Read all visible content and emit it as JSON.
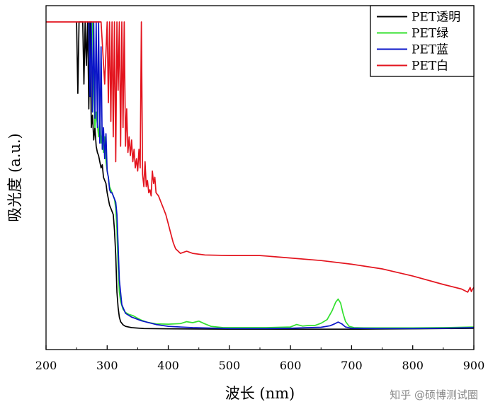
{
  "chart_data": {
    "type": "line",
    "title": "",
    "xlabel": "波长 (nm)",
    "ylabel": "吸光度 (a.u.)",
    "xlim": [
      200,
      900
    ],
    "ylim": [
      0,
      1
    ],
    "x_ticks": [
      "200",
      "300",
      "400",
      "500",
      "600",
      "700",
      "800",
      "900"
    ],
    "y_ticks_shown": false,
    "grid": false,
    "legend_position": "top-right",
    "series": [
      {
        "name": "PET透明",
        "color": "#000000",
        "x": [
          250,
          252,
          254,
          256,
          258,
          260,
          262,
          264,
          266,
          268,
          270,
          272,
          274,
          276,
          278,
          280,
          282,
          284,
          286,
          288,
          290,
          292,
          294,
          296,
          298,
          300,
          302,
          304,
          306,
          308,
          310,
          312,
          314,
          316,
          318,
          320,
          322,
          324,
          326,
          330,
          340,
          360,
          400,
          500,
          600,
          700,
          800,
          900
        ],
        "y": [
          1.0,
          0.77,
          1.0,
          1.0,
          1.0,
          1.0,
          0.8,
          1.0,
          0.86,
          1.0,
          0.72,
          1.0,
          0.66,
          0.7,
          0.62,
          0.66,
          0.6,
          0.58,
          0.57,
          0.55,
          0.53,
          0.54,
          0.5,
          0.49,
          0.48,
          0.45,
          0.43,
          0.41,
          0.4,
          0.39,
          0.38,
          0.33,
          0.25,
          0.13,
          0.08,
          0.05,
          0.035,
          0.03,
          0.025,
          0.02,
          0.016,
          0.013,
          0.012,
          0.011,
          0.011,
          0.011,
          0.012,
          0.014
        ]
      },
      {
        "name": "PET绿",
        "color": "#33e02f",
        "x": [
          276,
          278,
          280,
          282,
          284,
          286,
          288,
          290,
          292,
          294,
          296,
          298,
          300,
          302,
          304,
          306,
          308,
          310,
          312,
          314,
          316,
          318,
          320,
          322,
          326,
          330,
          336,
          342,
          348,
          356,
          366,
          380,
          400,
          420,
          430,
          440,
          450,
          460,
          470,
          490,
          520,
          560,
          600,
          610,
          620,
          630,
          640,
          650,
          660,
          668,
          674,
          678,
          682,
          686,
          690,
          696,
          704,
          720,
          760,
          800,
          850,
          900
        ],
        "y": [
          1.0,
          0.79,
          0.66,
          0.71,
          0.67,
          0.63,
          0.69,
          0.61,
          0.64,
          0.58,
          0.63,
          0.55,
          0.52,
          0.5,
          0.47,
          0.46,
          0.45,
          0.44,
          0.43,
          0.4,
          0.33,
          0.21,
          0.13,
          0.1,
          0.075,
          0.065,
          0.058,
          0.055,
          0.048,
          0.04,
          0.033,
          0.028,
          0.027,
          0.029,
          0.035,
          0.032,
          0.037,
          0.028,
          0.02,
          0.016,
          0.016,
          0.016,
          0.018,
          0.026,
          0.021,
          0.023,
          0.023,
          0.03,
          0.042,
          0.07,
          0.098,
          0.108,
          0.095,
          0.062,
          0.036,
          0.02,
          0.016,
          0.015,
          0.015,
          0.015,
          0.016,
          0.018
        ]
      },
      {
        "name": "PET蓝",
        "color": "#0a14c8",
        "x": [
          270,
          272,
          274,
          276,
          278,
          280,
          282,
          284,
          286,
          288,
          290,
          292,
          294,
          296,
          298,
          300,
          302,
          304,
          306,
          308,
          310,
          312,
          314,
          316,
          318,
          320,
          324,
          330,
          340,
          356,
          380,
          400,
          440,
          500,
          560,
          600,
          630,
          650,
          665,
          672,
          678,
          684,
          690,
          700,
          740,
          800,
          850,
          900
        ],
        "y": [
          1.0,
          0.76,
          1.0,
          0.71,
          1.0,
          0.69,
          1.0,
          0.66,
          1.0,
          0.61,
          0.92,
          0.59,
          0.66,
          0.56,
          0.64,
          0.52,
          0.5,
          0.46,
          0.45,
          0.45,
          0.44,
          0.43,
          0.42,
          0.38,
          0.28,
          0.17,
          0.09,
          0.062,
          0.05,
          0.038,
          0.026,
          0.02,
          0.016,
          0.013,
          0.013,
          0.014,
          0.016,
          0.017,
          0.022,
          0.028,
          0.034,
          0.028,
          0.018,
          0.014,
          0.013,
          0.013,
          0.014,
          0.016
        ]
      },
      {
        "name": "PET白",
        "color": "#e3141e",
        "x": [
          200,
          260,
          290,
          296,
          300,
          302,
          304,
          306,
          308,
          310,
          312,
          314,
          316,
          318,
          320,
          322,
          324,
          326,
          328,
          330,
          332,
          334,
          336,
          338,
          340,
          342,
          344,
          346,
          348,
          350,
          352,
          354,
          356,
          358,
          360,
          362,
          364,
          366,
          368,
          370,
          372,
          374,
          376,
          378,
          380,
          384,
          388,
          392,
          396,
          400,
          404,
          408,
          412,
          420,
          430,
          440,
          460,
          500,
          550,
          600,
          650,
          700,
          750,
          800,
          850,
          880,
          890,
          894,
          896,
          898,
          900
        ],
        "y": [
          1.0,
          1.0,
          1.0,
          0.8,
          1.0,
          0.74,
          1.0,
          0.68,
          1.0,
          0.63,
          1.0,
          0.55,
          1.0,
          0.78,
          1.0,
          0.6,
          1.0,
          0.66,
          1.0,
          0.6,
          0.72,
          0.58,
          0.63,
          0.57,
          0.62,
          0.55,
          0.59,
          0.53,
          0.56,
          0.52,
          0.59,
          0.53,
          1.0,
          0.51,
          0.47,
          0.55,
          0.47,
          0.49,
          0.45,
          0.46,
          0.44,
          0.52,
          0.48,
          0.5,
          0.45,
          0.44,
          0.42,
          0.4,
          0.38,
          0.35,
          0.32,
          0.29,
          0.27,
          0.255,
          0.262,
          0.255,
          0.25,
          0.248,
          0.248,
          0.24,
          0.232,
          0.22,
          0.205,
          0.182,
          0.155,
          0.14,
          0.13,
          0.145,
          0.132,
          0.14,
          0.145
        ]
      }
    ]
  },
  "watermark": "知乎 @硕博测试圈"
}
